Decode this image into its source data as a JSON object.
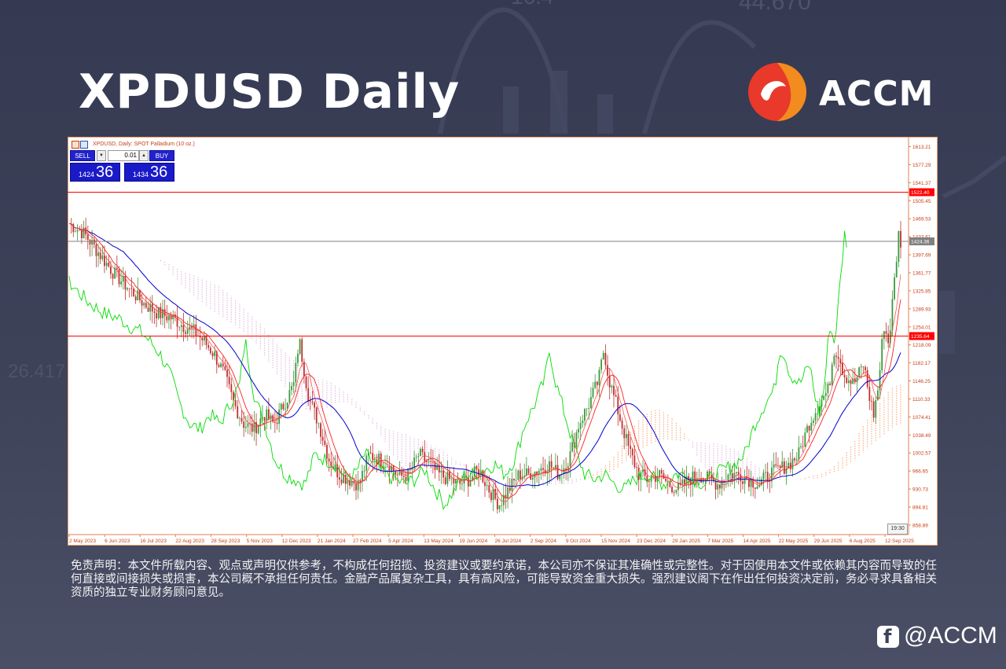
{
  "header": {
    "title": "XPDUSD Daily"
  },
  "brand": {
    "name": "ACCM"
  },
  "chart": {
    "symbol_line": "XPDUSD, Daily:  SPOT Palladium (10 oz.)",
    "trade_panel": {
      "sell_label": "SELL",
      "buy_label": "BUY",
      "lot": "0.01",
      "sell_price_small": "1424",
      "sell_price_big": "36",
      "buy_price_small": "1434",
      "buy_price_big": "36"
    },
    "time_badge": "19:30"
  },
  "chart_data": {
    "type": "candlestick",
    "title": "XPDUSD, Daily:  SPOT Palladium (10 oz.)",
    "ylim": [
      840,
      1625
    ],
    "y_ticks": [
      "1613.21",
      "1577.29",
      "1541.37",
      "1505.45",
      "1469.53",
      "1433.61",
      "1397.69",
      "1361.77",
      "1325.85",
      "1289.93",
      "1254.01",
      "1218.09",
      "1182.17",
      "1146.25",
      "1110.33",
      "1074.41",
      "1038.49",
      "1002.57",
      "966.65",
      "930.73",
      "894.81",
      "858.89"
    ],
    "x_ticks": [
      "2 May 2023",
      "6 Jun 2023",
      "16 Jul 2023",
      "22 Aug 2023",
      "28 Sep 2023",
      "5 Nov 2023",
      "12 Dec 2023",
      "21 Jan 2024",
      "27 Feb 2024",
      "5 Apr 2024",
      "13 May 2024",
      "19 Jun 2024",
      "26 Jul 2024",
      "2 Sep 2024",
      "9 Oct 2024",
      "15 Nov 2024",
      "23 Dec 2024",
      "29 Jan 2025",
      "7 Mar 2025",
      "14 Apr 2025",
      "22 May 2025",
      "29 Jun 2025",
      "6 Aug 2025",
      "12 Sep 2025"
    ],
    "horizontal_lines": [
      {
        "label": "1522.40",
        "value": 1522.4,
        "color": "#ff0000"
      },
      {
        "label": "1424.36",
        "value": 1424.36,
        "color": "#808080"
      },
      {
        "label": "1235.64",
        "value": 1235.64,
        "color": "#ff0000"
      }
    ],
    "close_path": [
      [
        0,
        1460
      ],
      [
        3,
        1440
      ],
      [
        6,
        1400
      ],
      [
        9,
        1360
      ],
      [
        12,
        1330
      ],
      [
        15,
        1300
      ],
      [
        18,
        1280
      ],
      [
        21,
        1270
      ],
      [
        23,
        1255
      ],
      [
        25,
        1245
      ],
      [
        27,
        1225
      ],
      [
        29,
        1200
      ],
      [
        31,
        1160
      ],
      [
        33,
        1100
      ],
      [
        35,
        1060
      ],
      [
        37,
        1050
      ],
      [
        39,
        1080
      ],
      [
        41,
        1060
      ],
      [
        43,
        1100
      ],
      [
        45,
        1140
      ],
      [
        46,
        1230
      ],
      [
        47,
        1170
      ],
      [
        48,
        1110
      ],
      [
        50,
        1060
      ],
      [
        52,
        990
      ],
      [
        54,
        960
      ],
      [
        56,
        950
      ],
      [
        58,
        940
      ],
      [
        60,
        1000
      ],
      [
        62,
        990
      ],
      [
        64,
        980
      ],
      [
        66,
        955
      ],
      [
        68,
        960
      ],
      [
        70,
        1000
      ],
      [
        72,
        980
      ],
      [
        74,
        960
      ],
      [
        76,
        950
      ],
      [
        78,
        940
      ],
      [
        80,
        950
      ],
      [
        82,
        970
      ],
      [
        84,
        930
      ],
      [
        86,
        900
      ],
      [
        88,
        930
      ],
      [
        90,
        960
      ],
      [
        92,
        960
      ],
      [
        94,
        970
      ],
      [
        96,
        980
      ],
      [
        98,
        960
      ],
      [
        100,
        990
      ],
      [
        102,
        1060
      ],
      [
        104,
        1100
      ],
      [
        106,
        1150
      ],
      [
        107,
        1210
      ],
      [
        108,
        1150
      ],
      [
        110,
        1080
      ],
      [
        112,
        1010
      ],
      [
        114,
        960
      ],
      [
        116,
        950
      ],
      [
        118,
        960
      ],
      [
        120,
        940
      ],
      [
        122,
        930
      ],
      [
        124,
        950
      ],
      [
        126,
        960
      ],
      [
        128,
        950
      ],
      [
        130,
        940
      ],
      [
        132,
        960
      ],
      [
        134,
        960
      ],
      [
        136,
        950
      ],
      [
        138,
        940
      ],
      [
        140,
        960
      ],
      [
        142,
        970
      ],
      [
        144,
        980
      ],
      [
        146,
        1000
      ],
      [
        148,
        1060
      ],
      [
        150,
        1100
      ],
      [
        152,
        1130
      ],
      [
        153,
        1210
      ],
      [
        154,
        1200
      ],
      [
        155,
        1160
      ],
      [
        157,
        1140
      ],
      [
        159,
        1180
      ],
      [
        160,
        1120
      ],
      [
        161,
        1080
      ],
      [
        162,
        1140
      ],
      [
        163,
        1260
      ],
      [
        164,
        1220
      ],
      [
        165,
        1330
      ],
      [
        166,
        1440
      ],
      [
        166.4,
        1424
      ]
    ],
    "price_line_color": "#cc2222",
    "indicators": [
      {
        "color": "#00dd00"
      },
      {
        "color": "#0000cc"
      },
      {
        "color": "#ff2020"
      },
      {
        "color": "#f08040"
      }
    ]
  },
  "footer": {
    "disclaimer": "免责声明：本文件所载内容、观点或声明仅供参考，不构成任何招揽、投资建议或要约承诺，本公司亦不保证其准确性或完整性。对于因使用本文件或依赖其内容而导致的任何直接或间接损失或损害，本公司概不承担任何责任。金融产品属复杂工具，具有高风险，可能导致资金重大损失。强烈建议阁下在作出任何投资决定前，务必寻求具备相关资质的独立专业财务顾问意见。",
    "social_handle": "@ACCM"
  }
}
